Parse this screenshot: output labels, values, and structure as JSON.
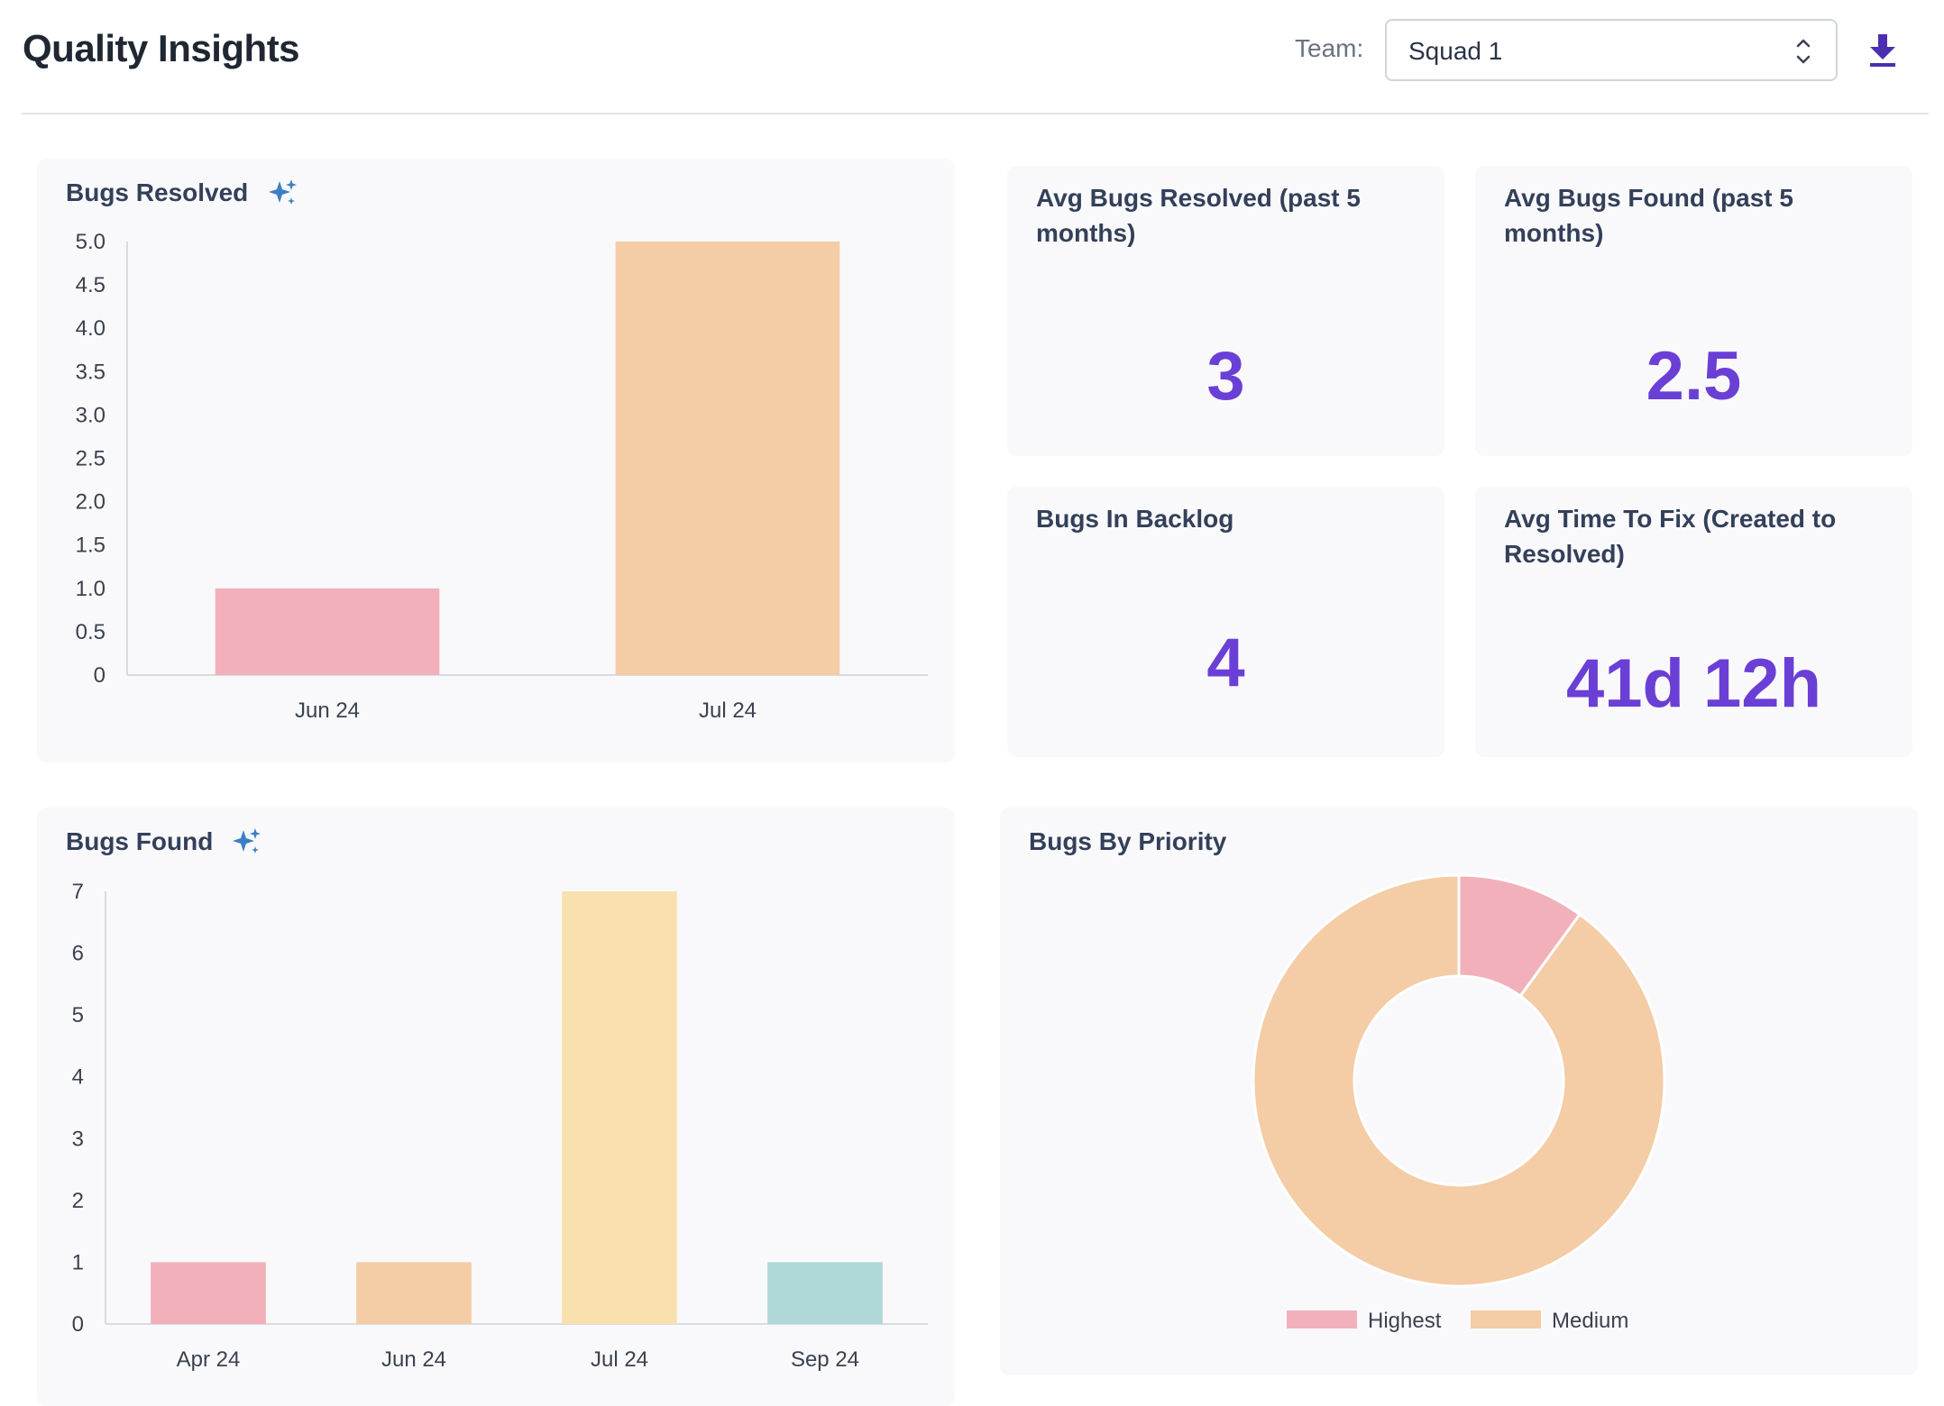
{
  "header": {
    "title": "Quality Insights",
    "team_label": "Team:",
    "team_value": "Squad 1"
  },
  "colors": {
    "accent": "#6a3fd6",
    "pink": "#f2b0bb",
    "peach": "#f4cca5",
    "yellow": "#f8e1ae",
    "teal": "#b0d8d8"
  },
  "bugs_resolved": {
    "title": "Bugs Resolved"
  },
  "bugs_found": {
    "title": "Bugs Found"
  },
  "stats": {
    "avg_resolved": {
      "label": "Avg Bugs Resolved (past 5 months)",
      "value": "3"
    },
    "avg_found": {
      "label": "Avg Bugs Found (past 5 months)",
      "value": "2.5"
    },
    "backlog": {
      "label": "Bugs In Backlog",
      "value": "4"
    },
    "time_to_fix": {
      "label": "Avg Time To Fix (Created to Resolved)",
      "value": "41d 12h"
    }
  },
  "priority": {
    "title": "Bugs By Priority"
  },
  "chart_data": [
    {
      "type": "bar",
      "title": "Bugs Resolved",
      "categories": [
        "Jun 24",
        "Jul 24"
      ],
      "values": [
        1,
        5
      ],
      "bar_colors": [
        "#f2b0bb",
        "#f4cca5"
      ],
      "ylim": [
        0,
        5
      ],
      "yticks": [
        "0",
        "0.5",
        "1.0",
        "1.5",
        "2.0",
        "2.5",
        "3.0",
        "3.5",
        "4.0",
        "4.5",
        "5.0"
      ],
      "ytick_values": [
        0,
        0.5,
        1,
        1.5,
        2,
        2.5,
        3,
        3.5,
        4,
        4.5,
        5
      ]
    },
    {
      "type": "bar",
      "title": "Bugs Found",
      "categories": [
        "Apr 24",
        "Jun 24",
        "Jul 24",
        "Sep 24"
      ],
      "values": [
        1,
        1,
        7,
        1
      ],
      "bar_colors": [
        "#f2b0bb",
        "#f4cca5",
        "#f8e1ae",
        "#b0d8d8"
      ],
      "ylim": [
        0,
        7
      ],
      "yticks": [
        "0",
        "1",
        "2",
        "3",
        "4",
        "5",
        "6",
        "7"
      ],
      "ytick_values": [
        0,
        1,
        2,
        3,
        4,
        5,
        6,
        7
      ]
    },
    {
      "type": "pie",
      "title": "Bugs By Priority",
      "donut": true,
      "categories": [
        "Highest",
        "Medium"
      ],
      "values": [
        1,
        9
      ],
      "colors": [
        "#f2b0bb",
        "#f4cca5"
      ],
      "legend_position": "bottom"
    }
  ]
}
